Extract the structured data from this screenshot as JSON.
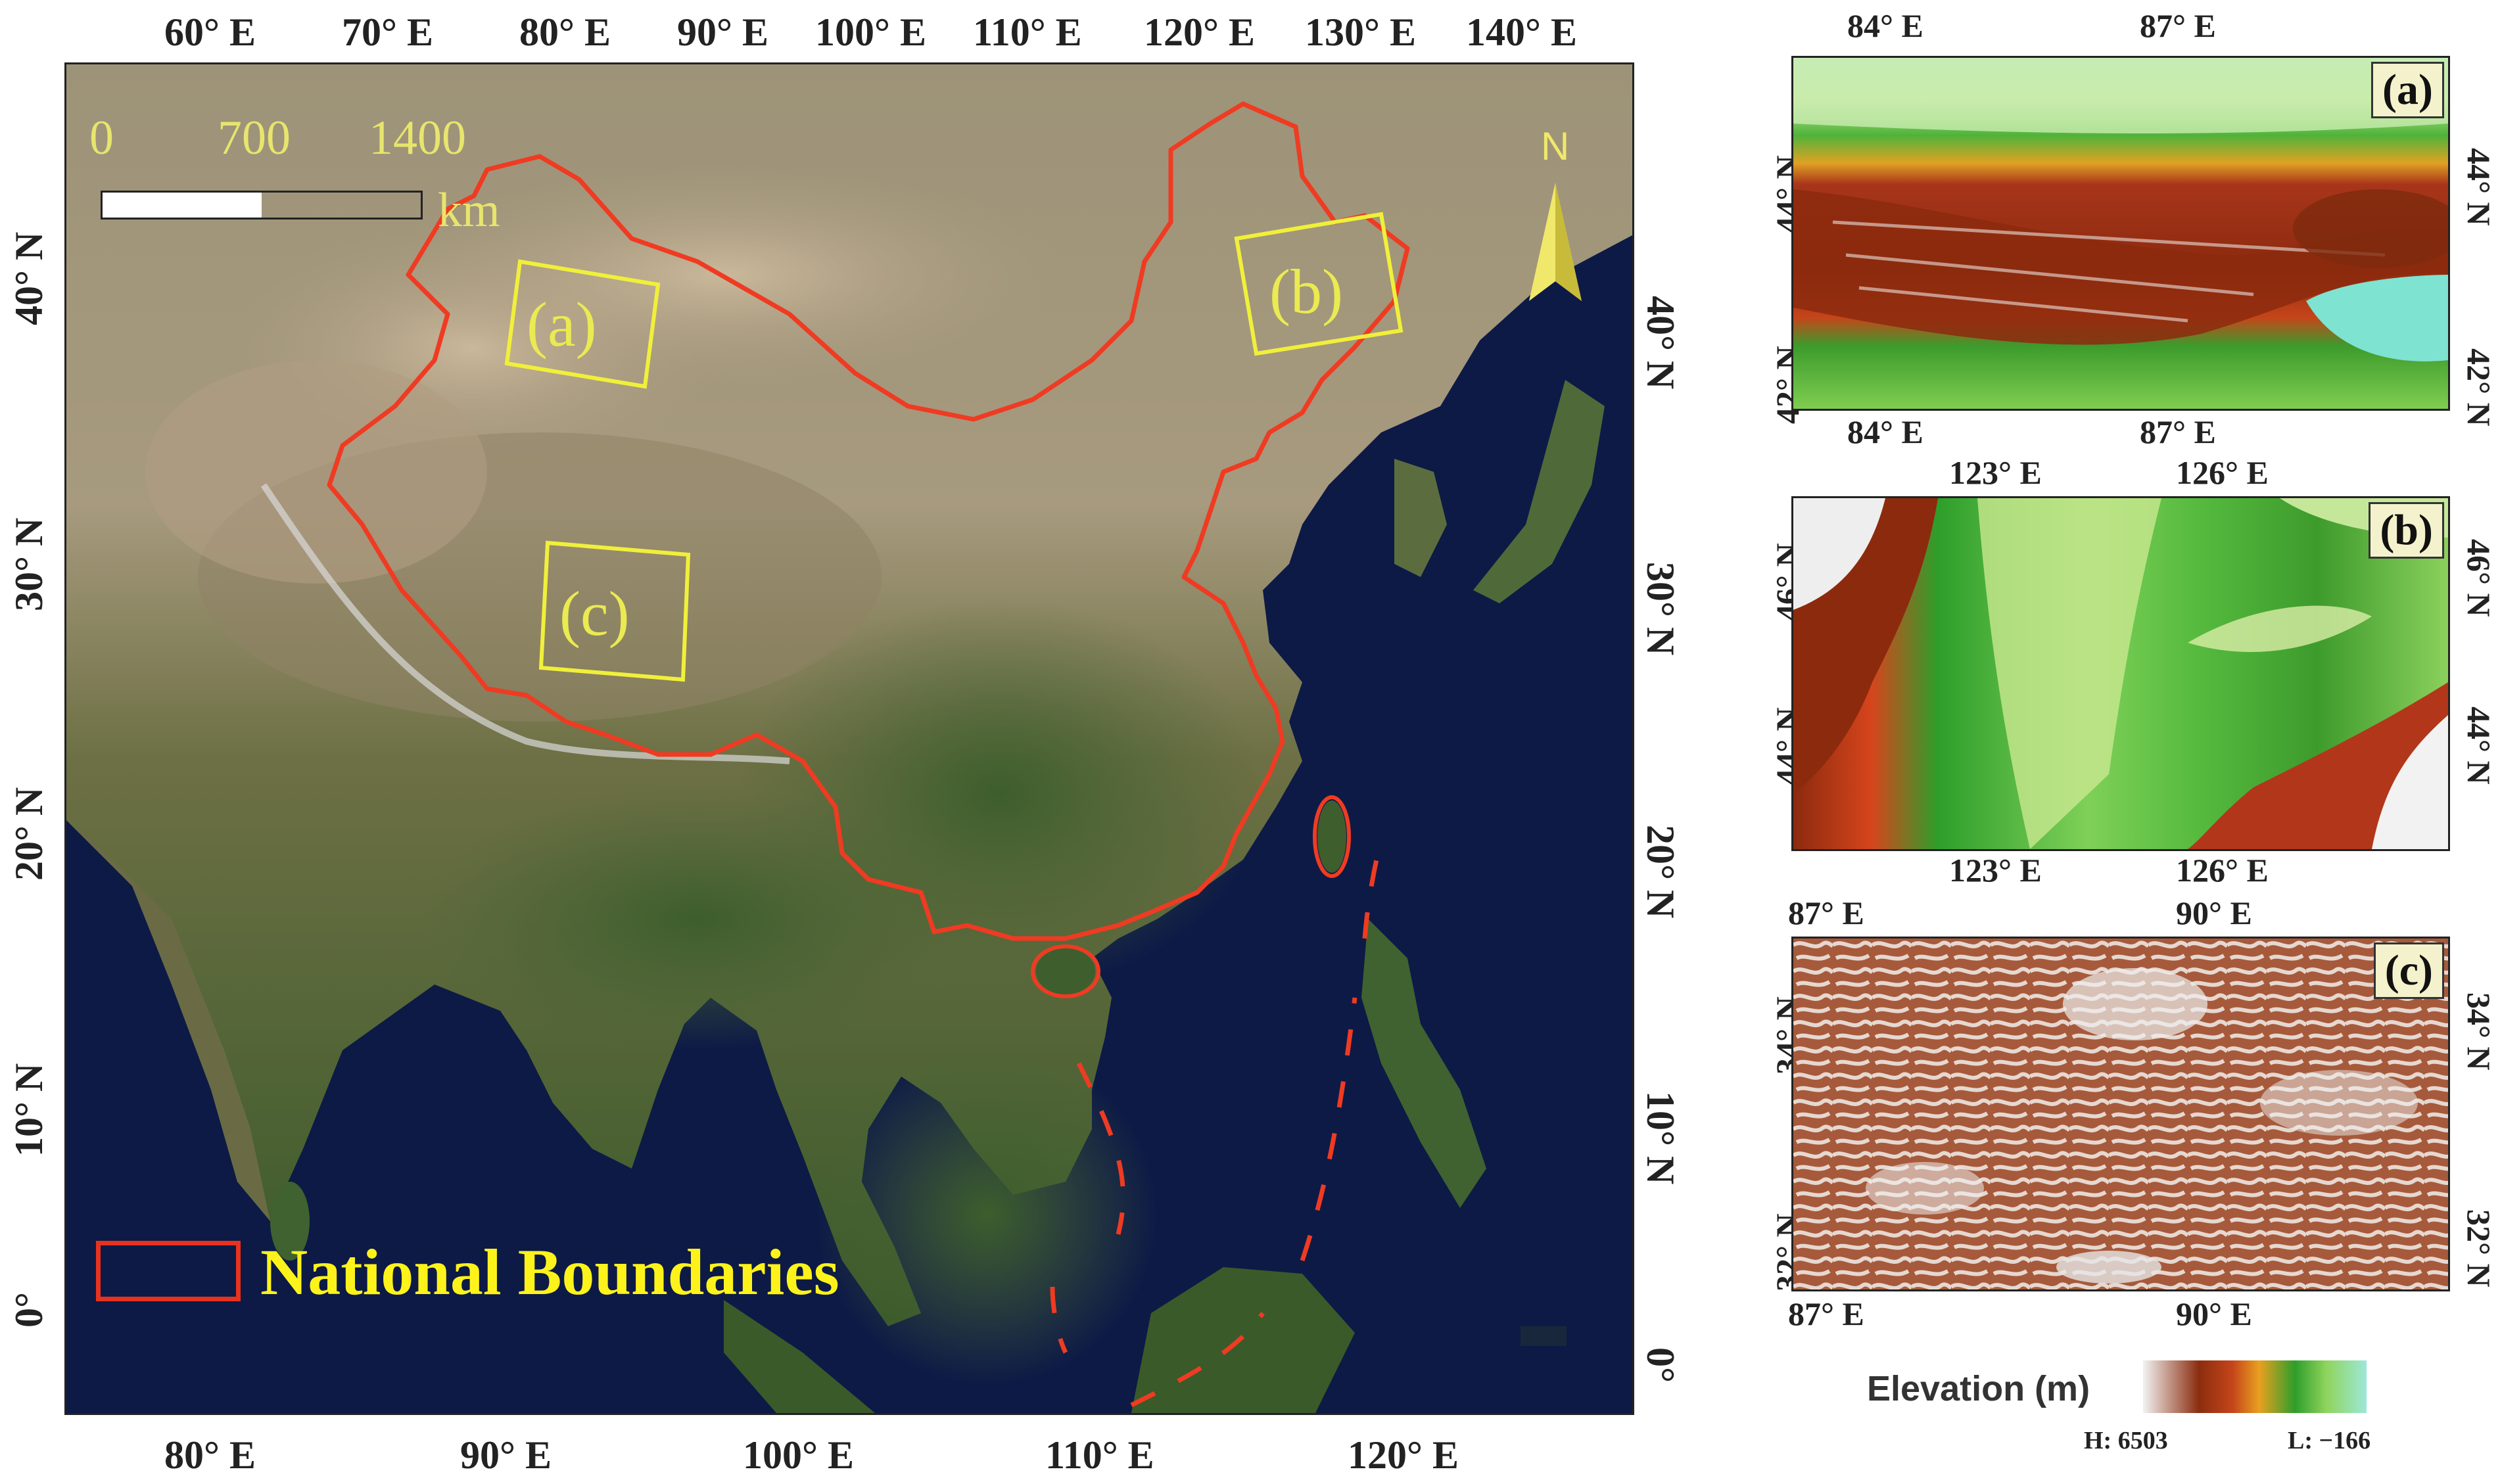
{
  "main_map": {
    "top_lon_ticks": [
      "60° E",
      "70° E",
      "80° E",
      "90° E",
      "100° E",
      "110° E",
      "120° E",
      "130° E",
      "140° E"
    ],
    "bottom_lon_ticks": [
      "80° E",
      "90° E",
      "100° E",
      "110° E",
      "120° E"
    ],
    "left_lat_ticks": [
      "40° N",
      "30° N",
      "20° N",
      "10° N",
      "0°"
    ],
    "right_lat_ticks": [
      "40° N",
      "30° N",
      "20° N",
      "10° N",
      "0°"
    ],
    "scale": {
      "labels": [
        "0",
        "700",
        "1400"
      ],
      "unit": "km"
    },
    "north_arrow": "N",
    "regions": [
      "(a)",
      "(b)",
      "(c)"
    ],
    "legend": {
      "label": "National Boundaries",
      "color": "#e8321e"
    },
    "colors": {
      "boundary": "#ef3b22",
      "region_box": "#f0f03a",
      "ocean": "#0d1a46"
    }
  },
  "panel_a": {
    "label": "(a)",
    "top_ticks": [
      "84° E",
      "87° E"
    ],
    "bottom_ticks": [
      "84° E",
      "87° E"
    ],
    "left_ticks": [
      "44° N",
      "42° N"
    ],
    "right_ticks": [
      "44° N",
      "42° N"
    ]
  },
  "panel_b": {
    "label": "(b)",
    "top_ticks": [
      "123° E",
      "126° E"
    ],
    "bottom_ticks": [
      "123° E",
      "126° E"
    ],
    "left_ticks": [
      "46° N",
      "44° N"
    ],
    "right_ticks": [
      "46° N",
      "44° N"
    ]
  },
  "panel_c": {
    "label": "(c)",
    "top_ticks": [
      "87° E",
      "90° E"
    ],
    "bottom_ticks": [
      "87° E",
      "90° E"
    ],
    "left_ticks": [
      "34° N",
      "32° N"
    ],
    "right_ticks": [
      "34° N",
      "32° N"
    ]
  },
  "elevation_legend": {
    "title": "Elevation (m)",
    "high": "H: 6503",
    "low": "L: −166",
    "gradient": [
      "#f2f2f2",
      "#8b2d0e",
      "#c4451a",
      "#e8a020",
      "#2e9e2b",
      "#8fd45c",
      "#9ce8d8"
    ]
  }
}
